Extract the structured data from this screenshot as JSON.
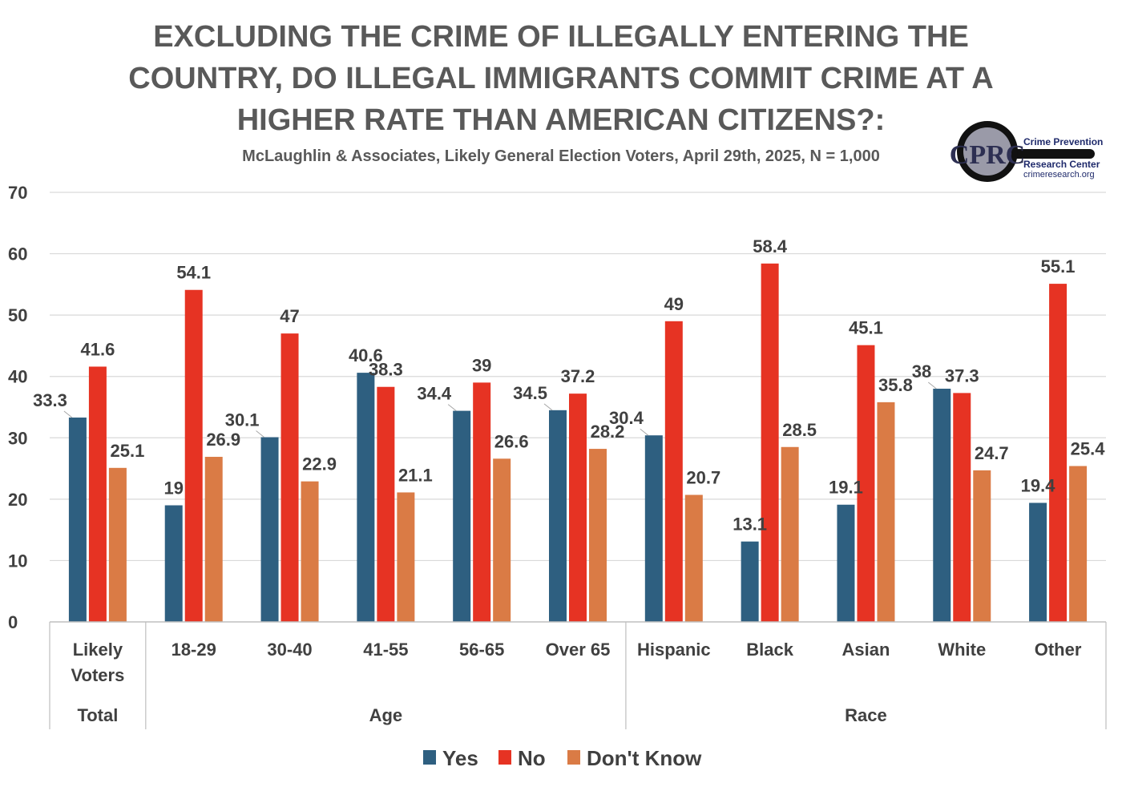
{
  "chart_data": {
    "type": "bar",
    "title_lines": [
      "EXCLUDING THE CRIME OF ILLEGALLY ENTERING THE",
      "COUNTRY, DO ILLEGAL IMMIGRANTS COMMIT CRIME AT A",
      "HIGHER RATE THAN AMERICAN CITIZENS?:"
    ],
    "subtitle": "McLaughlin & Associates, Likely General Election Voters, April 29th, 2025, N = 1,000",
    "ylim": [
      0,
      70
    ],
    "yticks": [
      0,
      10,
      20,
      30,
      40,
      50,
      60,
      70
    ],
    "grid": true,
    "legend_position": "bottom",
    "categories": [
      [
        "Likely",
        "Voters"
      ],
      [
        "18-29"
      ],
      [
        "30-40"
      ],
      [
        "41-55"
      ],
      [
        "56-65"
      ],
      [
        "Over 65"
      ],
      [
        "Hispanic"
      ],
      [
        "Black"
      ],
      [
        "Asian"
      ],
      [
        "White"
      ],
      [
        "Other"
      ]
    ],
    "groups": [
      {
        "label": "Total",
        "count": 1
      },
      {
        "label": "Age",
        "count": 5
      },
      {
        "label": "Race",
        "count": 5
      }
    ],
    "series": [
      {
        "name": "Yes",
        "color": "#2e5f80",
        "values": [
          33.3,
          19,
          30.1,
          40.6,
          34.4,
          34.5,
          30.4,
          13.1,
          19.1,
          38,
          19.4
        ]
      },
      {
        "name": "No",
        "color": "#e63323",
        "values": [
          41.6,
          54.1,
          47,
          38.3,
          39,
          37.2,
          49,
          58.4,
          45.1,
          37.3,
          55.1
        ]
      },
      {
        "name": "Don't Know",
        "color": "#da7b45",
        "values": [
          25.1,
          26.9,
          22.9,
          21.1,
          26.6,
          28.2,
          20.7,
          28.5,
          35.8,
          24.7,
          25.4
        ]
      }
    ]
  },
  "logo": {
    "monogram": "CPRC",
    "line1": "Crime Prevention",
    "line2": "Research Center",
    "line3": "crimeresearch.org"
  }
}
